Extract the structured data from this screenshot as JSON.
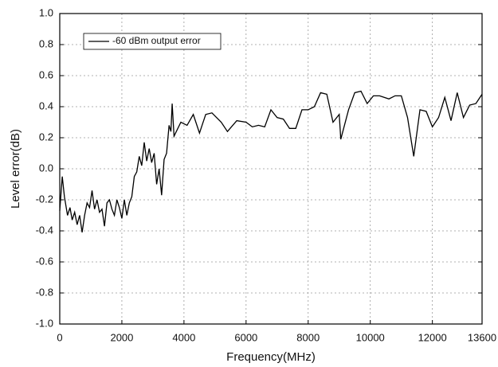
{
  "chart_data": {
    "type": "line",
    "x_label": "Frequency(MHz)",
    "y_label": "Level error(dB)",
    "xlim": [
      0,
      13600
    ],
    "ylim": [
      -1.0,
      1.0
    ],
    "xticks": [
      0,
      2000,
      4000,
      6000,
      8000,
      10000,
      12000,
      13600
    ],
    "yticks": [
      {
        "value": -1.0,
        "label": "-1.0"
      },
      -0.8,
      -0.6,
      -0.4,
      -0.2,
      {
        "value": 0.0,
        "label": "0.0"
      },
      0.2,
      0.4,
      0.6,
      0.8,
      {
        "value": 1.0,
        "label": "1.0"
      }
    ],
    "grid": true,
    "legend": "upper left",
    "series": [
      {
        "name": "-60 dBm output error",
        "color": "#000000",
        "x": [
          0,
          80,
          150,
          250,
          330,
          400,
          480,
          560,
          640,
          720,
          800,
          880,
          960,
          1040,
          1120,
          1200,
          1280,
          1360,
          1440,
          1520,
          1600,
          1680,
          1760,
          1840,
          1920,
          2000,
          2080,
          2160,
          2240,
          2320,
          2400,
          2480,
          2560,
          2640,
          2720,
          2800,
          2880,
          2960,
          3040,
          3120,
          3200,
          3280,
          3360,
          3440,
          3520,
          3580,
          3620,
          3680,
          3900,
          4100,
          4300,
          4500,
          4700,
          4900,
          5200,
          5400,
          5700,
          6000,
          6200,
          6400,
          6600,
          6800,
          7000,
          7200,
          7400,
          7600,
          7800,
          8000,
          8200,
          8400,
          8600,
          8800,
          9000,
          9050,
          9300,
          9500,
          9700,
          9900,
          10100,
          10300,
          10600,
          10800,
          11000,
          11200,
          11400,
          11600,
          11800,
          12000,
          12200,
          12400,
          12600,
          12800,
          13000,
          13200,
          13400,
          13600
        ],
        "values": [
          -0.27,
          -0.05,
          -0.18,
          -0.3,
          -0.25,
          -0.33,
          -0.28,
          -0.36,
          -0.3,
          -0.41,
          -0.3,
          -0.22,
          -0.25,
          -0.14,
          -0.26,
          -0.2,
          -0.28,
          -0.26,
          -0.37,
          -0.22,
          -0.2,
          -0.26,
          -0.3,
          -0.2,
          -0.25,
          -0.32,
          -0.2,
          -0.3,
          -0.22,
          -0.18,
          -0.05,
          -0.02,
          0.08,
          0.02,
          0.17,
          0.05,
          0.13,
          0.04,
          0.1,
          -0.1,
          0.0,
          -0.17,
          0.06,
          0.1,
          0.28,
          0.24,
          0.42,
          0.21,
          0.3,
          0.28,
          0.35,
          0.23,
          0.35,
          0.36,
          0.3,
          0.24,
          0.31,
          0.3,
          0.27,
          0.28,
          0.27,
          0.38,
          0.33,
          0.32,
          0.26,
          0.26,
          0.38,
          0.38,
          0.4,
          0.49,
          0.48,
          0.3,
          0.35,
          0.19,
          0.38,
          0.49,
          0.5,
          0.42,
          0.47,
          0.47,
          0.45,
          0.47,
          0.47,
          0.33,
          0.08,
          0.38,
          0.37,
          0.27,
          0.33,
          0.46,
          0.31,
          0.49,
          0.33,
          0.41,
          0.42,
          0.48
        ]
      }
    ]
  }
}
